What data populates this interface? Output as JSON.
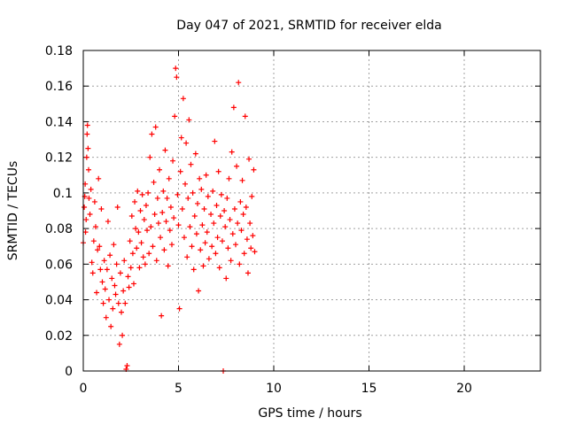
{
  "chart_data": {
    "type": "scatter",
    "title": "Day 047 of 2021, SRMTID for receiver elda",
    "xlabel": "GPS time / hours",
    "ylabel": "SRMTID / TECUs",
    "xlim": [
      0,
      24
    ],
    "ylim": [
      0,
      0.18
    ],
    "x_ticks": [
      0,
      5,
      10,
      15,
      20
    ],
    "x_tick_labels": [
      "0",
      "5",
      "10",
      "15",
      "20"
    ],
    "y_ticks": [
      0,
      0.02,
      0.04,
      0.06,
      0.08,
      0.1,
      0.12,
      0.14,
      0.16,
      0.18
    ],
    "y_tick_labels": [
      "0",
      "0.02",
      "0.04",
      "0.06",
      "0.08",
      "0.1",
      "0.12",
      "0.14",
      "0.16",
      "0.18"
    ],
    "grid": true,
    "marker": "plus",
    "marker_color": "#ff0000",
    "series": [
      {
        "name": "SRMTID",
        "points": [
          [
            0.0,
            0.072
          ],
          [
            0.05,
            0.092
          ],
          [
            0.08,
            0.098
          ],
          [
            0.1,
            0.105
          ],
          [
            0.12,
            0.078
          ],
          [
            0.15,
            0.085
          ],
          [
            0.18,
            0.12
          ],
          [
            0.2,
            0.133
          ],
          [
            0.22,
            0.138
          ],
          [
            0.25,
            0.125
          ],
          [
            0.28,
            0.113
          ],
          [
            0.3,
            0.097
          ],
          [
            0.35,
            0.088
          ],
          [
            0.4,
            0.102
          ],
          [
            0.45,
            0.061
          ],
          [
            0.5,
            0.055
          ],
          [
            0.55,
            0.073
          ],
          [
            0.6,
            0.095
          ],
          [
            0.65,
            0.081
          ],
          [
            0.7,
            0.044
          ],
          [
            0.75,
            0.068
          ],
          [
            0.8,
            0.108
          ],
          [
            0.85,
            0.07
          ],
          [
            0.9,
            0.057
          ],
          [
            0.95,
            0.091
          ],
          [
            1.0,
            0.05
          ],
          [
            1.05,
            0.038
          ],
          [
            1.1,
            0.062
          ],
          [
            1.15,
            0.046
          ],
          [
            1.2,
            0.03
          ],
          [
            1.25,
            0.057
          ],
          [
            1.3,
            0.084
          ],
          [
            1.35,
            0.04
          ],
          [
            1.4,
            0.065
          ],
          [
            1.45,
            0.025
          ],
          [
            1.5,
            0.052
          ],
          [
            1.55,
            0.035
          ],
          [
            1.6,
            0.071
          ],
          [
            1.65,
            0.048
          ],
          [
            1.7,
            0.043
          ],
          [
            1.75,
            0.06
          ],
          [
            1.8,
            0.092
          ],
          [
            1.85,
            0.038
          ],
          [
            1.9,
            0.015
          ],
          [
            1.95,
            0.055
          ],
          [
            2.0,
            0.033
          ],
          [
            2.05,
            0.02
          ],
          [
            2.1,
            0.045
          ],
          [
            2.15,
            0.062
          ],
          [
            2.2,
            0.038
          ],
          [
            2.25,
            0.001
          ],
          [
            2.3,
            0.003
          ],
          [
            2.35,
            0.053
          ],
          [
            2.4,
            0.047
          ],
          [
            2.45,
            0.073
          ],
          [
            2.5,
            0.058
          ],
          [
            2.55,
            0.087
          ],
          [
            2.6,
            0.066
          ],
          [
            2.65,
            0.049
          ],
          [
            2.7,
            0.095
          ],
          [
            2.75,
            0.08
          ],
          [
            2.8,
            0.069
          ],
          [
            2.85,
            0.101
          ],
          [
            2.9,
            0.078
          ],
          [
            2.95,
            0.058
          ],
          [
            3.0,
            0.09
          ],
          [
            3.05,
            0.072
          ],
          [
            3.1,
            0.099
          ],
          [
            3.15,
            0.064
          ],
          [
            3.2,
            0.085
          ],
          [
            3.25,
            0.06
          ],
          [
            3.3,
            0.093
          ],
          [
            3.35,
            0.079
          ],
          [
            3.4,
            0.1
          ],
          [
            3.45,
            0.066
          ],
          [
            3.5,
            0.12
          ],
          [
            3.55,
            0.081
          ],
          [
            3.6,
            0.133
          ],
          [
            3.65,
            0.07
          ],
          [
            3.7,
            0.106
          ],
          [
            3.75,
            0.088
          ],
          [
            3.8,
            0.137
          ],
          [
            3.85,
            0.062
          ],
          [
            3.9,
            0.097
          ],
          [
            3.95,
            0.083
          ],
          [
            4.0,
            0.113
          ],
          [
            4.05,
            0.075
          ],
          [
            4.1,
            0.031
          ],
          [
            4.15,
            0.089
          ],
          [
            4.2,
            0.101
          ],
          [
            4.25,
            0.068
          ],
          [
            4.3,
            0.124
          ],
          [
            4.35,
            0.084
          ],
          [
            4.4,
            0.097
          ],
          [
            4.45,
            0.059
          ],
          [
            4.5,
            0.108
          ],
          [
            4.55,
            0.079
          ],
          [
            4.6,
            0.092
          ],
          [
            4.65,
            0.071
          ],
          [
            4.7,
            0.118
          ],
          [
            4.75,
            0.086
          ],
          [
            4.8,
            0.143
          ],
          [
            4.85,
            0.17
          ],
          [
            4.9,
            0.165
          ],
          [
            4.95,
            0.099
          ],
          [
            5.0,
            0.082
          ],
          [
            5.05,
            0.035
          ],
          [
            5.1,
            0.112
          ],
          [
            5.15,
            0.131
          ],
          [
            5.2,
            0.091
          ],
          [
            5.25,
            0.153
          ],
          [
            5.3,
            0.075
          ],
          [
            5.35,
            0.105
          ],
          [
            5.4,
            0.128
          ],
          [
            5.45,
            0.064
          ],
          [
            5.5,
            0.097
          ],
          [
            5.55,
            0.141
          ],
          [
            5.6,
            0.081
          ],
          [
            5.65,
            0.116
          ],
          [
            5.7,
            0.07
          ],
          [
            5.75,
            0.1
          ],
          [
            5.8,
            0.057
          ],
          [
            5.85,
            0.087
          ],
          [
            5.9,
            0.122
          ],
          [
            5.95,
            0.077
          ],
          [
            6.0,
            0.094
          ],
          [
            6.05,
            0.045
          ],
          [
            6.1,
            0.108
          ],
          [
            6.15,
            0.068
          ],
          [
            6.2,
            0.102
          ],
          [
            6.25,
            0.082
          ],
          [
            6.3,
            0.059
          ],
          [
            6.35,
            0.091
          ],
          [
            6.4,
            0.072
          ],
          [
            6.45,
            0.11
          ],
          [
            6.5,
            0.078
          ],
          [
            6.55,
            0.098
          ],
          [
            6.6,
            0.063
          ],
          [
            6.7,
            0.088
          ],
          [
            6.75,
            0.07
          ],
          [
            6.8,
            0.101
          ],
          [
            6.85,
            0.083
          ],
          [
            6.9,
            0.129
          ],
          [
            6.95,
            0.066
          ],
          [
            7.0,
            0.093
          ],
          [
            7.05,
            0.075
          ],
          [
            7.1,
            0.112
          ],
          [
            7.15,
            0.058
          ],
          [
            7.2,
            0.087
          ],
          [
            7.25,
            0.099
          ],
          [
            7.3,
            0.073
          ],
          [
            7.35,
            0.0
          ],
          [
            7.4,
            0.09
          ],
          [
            7.45,
            0.081
          ],
          [
            7.5,
            0.052
          ],
          [
            7.55,
            0.097
          ],
          [
            7.6,
            0.069
          ],
          [
            7.65,
            0.108
          ],
          [
            7.7,
            0.085
          ],
          [
            7.75,
            0.062
          ],
          [
            7.8,
            0.123
          ],
          [
            7.85,
            0.077
          ],
          [
            7.9,
            0.148
          ],
          [
            7.95,
            0.091
          ],
          [
            8.0,
            0.071
          ],
          [
            8.05,
            0.115
          ],
          [
            8.1,
            0.083
          ],
          [
            8.15,
            0.162
          ],
          [
            8.2,
            0.06
          ],
          [
            8.25,
            0.095
          ],
          [
            8.3,
            0.079
          ],
          [
            8.35,
            0.107
          ],
          [
            8.4,
            0.088
          ],
          [
            8.45,
            0.066
          ],
          [
            8.5,
            0.143
          ],
          [
            8.55,
            0.092
          ],
          [
            8.6,
            0.074
          ],
          [
            8.65,
            0.055
          ],
          [
            8.7,
            0.119
          ],
          [
            8.75,
            0.083
          ],
          [
            8.8,
            0.069
          ],
          [
            8.85,
            0.098
          ],
          [
            8.9,
            0.076
          ],
          [
            8.95,
            0.113
          ],
          [
            9.0,
            0.067
          ]
        ]
      }
    ]
  }
}
